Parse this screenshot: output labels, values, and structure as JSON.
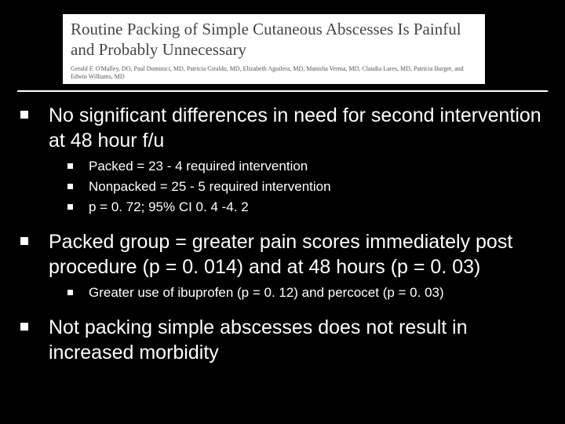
{
  "header": {
    "title": "Routine Packing of Simple Cutaneous Abscesses Is Painful and Probably Unnecessary",
    "authors": "Gerald F. O'Malley, DO, Paul Dominici, MD, Patricia Giraldo, MD, Elizabeth Aguilera, MD, Manisha Verma, MD, Claudia Lares, MD, Patricia Burger, and Edwin Williams, MD"
  },
  "points": [
    {
      "text": "No significant differences in need for second intervention at 48 hour f/u",
      "sub": [
        "Packed = 23 - 4 required intervention",
        "Nonpacked = 25 - 5 required intervention",
        "p = 0. 72; 95% CI 0. 4 -4. 2"
      ]
    },
    {
      "text": "Packed group = greater pain scores immediately post procedure (p = 0. 014) and at 48 hours (p = 0. 03)",
      "sub": [
        "Greater use of ibuprofen (p = 0. 12) and percocet (p = 0. 03)"
      ]
    },
    {
      "text": "Not packing simple abscesses does not result in increased morbidity",
      "sub": []
    }
  ]
}
